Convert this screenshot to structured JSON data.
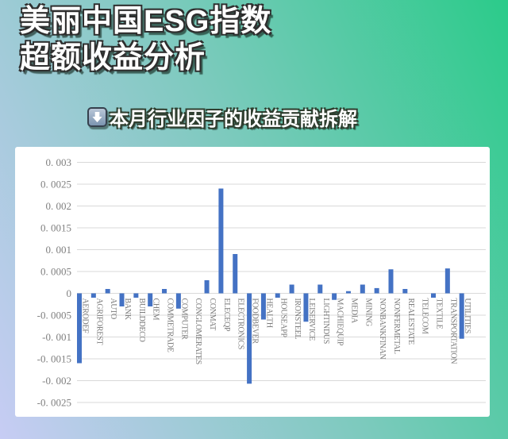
{
  "header": {
    "title_line1": "美丽中国ESG指数",
    "title_line2": "超额收益分析",
    "subtitle": "本月行业因子的收益贡献拆解"
  },
  "colors": {
    "bar": "#4472C4",
    "gridline": "#d9d9d9",
    "axis_tick_text": "#808080",
    "category_text": "#7a7a7a",
    "panel_background": "#ffffff",
    "background_gradient_top_right": "#2bcb8a",
    "background_gradient_middle": "#7ccabd",
    "background_gradient_bottom_left": "#c7ccf4"
  },
  "chart_data": {
    "type": "bar",
    "title": "",
    "xlabel": "",
    "ylabel": "",
    "legend": false,
    "grid": true,
    "ylim": [
      -0.0025,
      0.003
    ],
    "categories": [
      "AERODEF",
      "AGRIFOREST",
      "AUTO",
      "BANK",
      "BUILDDECO",
      "CHEM",
      "COMMETRADE",
      "COMPUTER",
      "CONGLOMERATES",
      "CONMAT",
      "ELECEQP",
      "ELECTRONICS",
      "FOODBEVER",
      "HEALTH",
      "HOUSEAPP",
      "IRONSTEEL",
      "LEISERVICE",
      "LIGHTINDUS",
      "MACHIEQUIP",
      "MEDIA",
      "MINING",
      "NONBANKFINAN",
      "NONFERMETAL",
      "REALESTATE",
      "TELECOM",
      "TEXTILE",
      "TRANSPORTATION",
      "UTILITIES"
    ],
    "values": [
      -0.0016,
      -0.0001,
      0.0001,
      -0.0003,
      -0.0001,
      -0.0003,
      0.0001,
      -0.00035,
      0,
      0.0003,
      0.0024,
      0.0009,
      -0.00207,
      -0.0006,
      -0.0001,
      0.0002,
      -0.00065,
      0.0002,
      -0.00015,
      5e-05,
      0.0002,
      0.00012,
      0.00055,
      0.0001,
      0,
      -0.0001,
      0.00057,
      -0.00104
    ],
    "y_ticks": [
      {
        "label": "0. 003",
        "value": 0.003
      },
      {
        "label": "0. 0025",
        "value": 0.0025
      },
      {
        "label": "0. 002",
        "value": 0.002
      },
      {
        "label": "0. 0015",
        "value": 0.0015
      },
      {
        "label": "0. 001",
        "value": 0.001
      },
      {
        "label": "0. 0005",
        "value": 0.0005
      },
      {
        "label": "0",
        "value": 0
      },
      {
        "label": "-0. 0005",
        "value": -0.0005
      },
      {
        "label": "-0. 001",
        "value": -0.001
      },
      {
        "label": "-0. 0015",
        "value": -0.0015
      },
      {
        "label": "-0. 002",
        "value": -0.002
      },
      {
        "label": "-0. 0025",
        "value": -0.0025
      }
    ]
  }
}
